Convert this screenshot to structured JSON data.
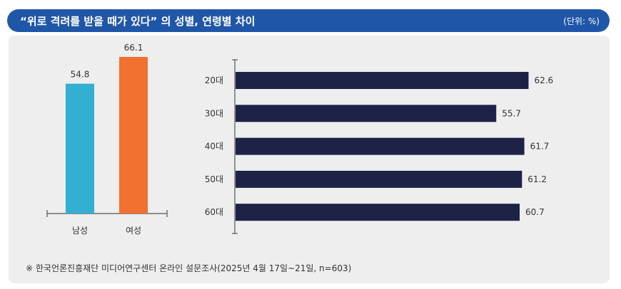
{
  "header": {
    "title": "“위로 격려를 받을 때가 있다” 의 성별, 연령별 차이",
    "unit": "(단위: %)"
  },
  "source": "※ 한국언론진흥재단 미디어연구센터 온라인 설문조사(2025년 4월 17일~21일, n=603)",
  "colors": {
    "male": "#33afd1",
    "female": "#f27030",
    "age": "#1d2246",
    "header": "#1f56a8",
    "panel": "#eeeeef"
  },
  "chart_data": [
    {
      "type": "bar",
      "orientation": "vertical",
      "categories": [
        "남성",
        "여성"
      ],
      "values": [
        54.8,
        66.1
      ],
      "ylim": [
        0,
        70
      ]
    },
    {
      "type": "bar",
      "orientation": "horizontal",
      "categories": [
        "20대",
        "30대",
        "40대",
        "50대",
        "60대"
      ],
      "values": [
        62.6,
        55.7,
        61.7,
        61.2,
        60.7
      ],
      "xlim": [
        0,
        70
      ]
    }
  ]
}
